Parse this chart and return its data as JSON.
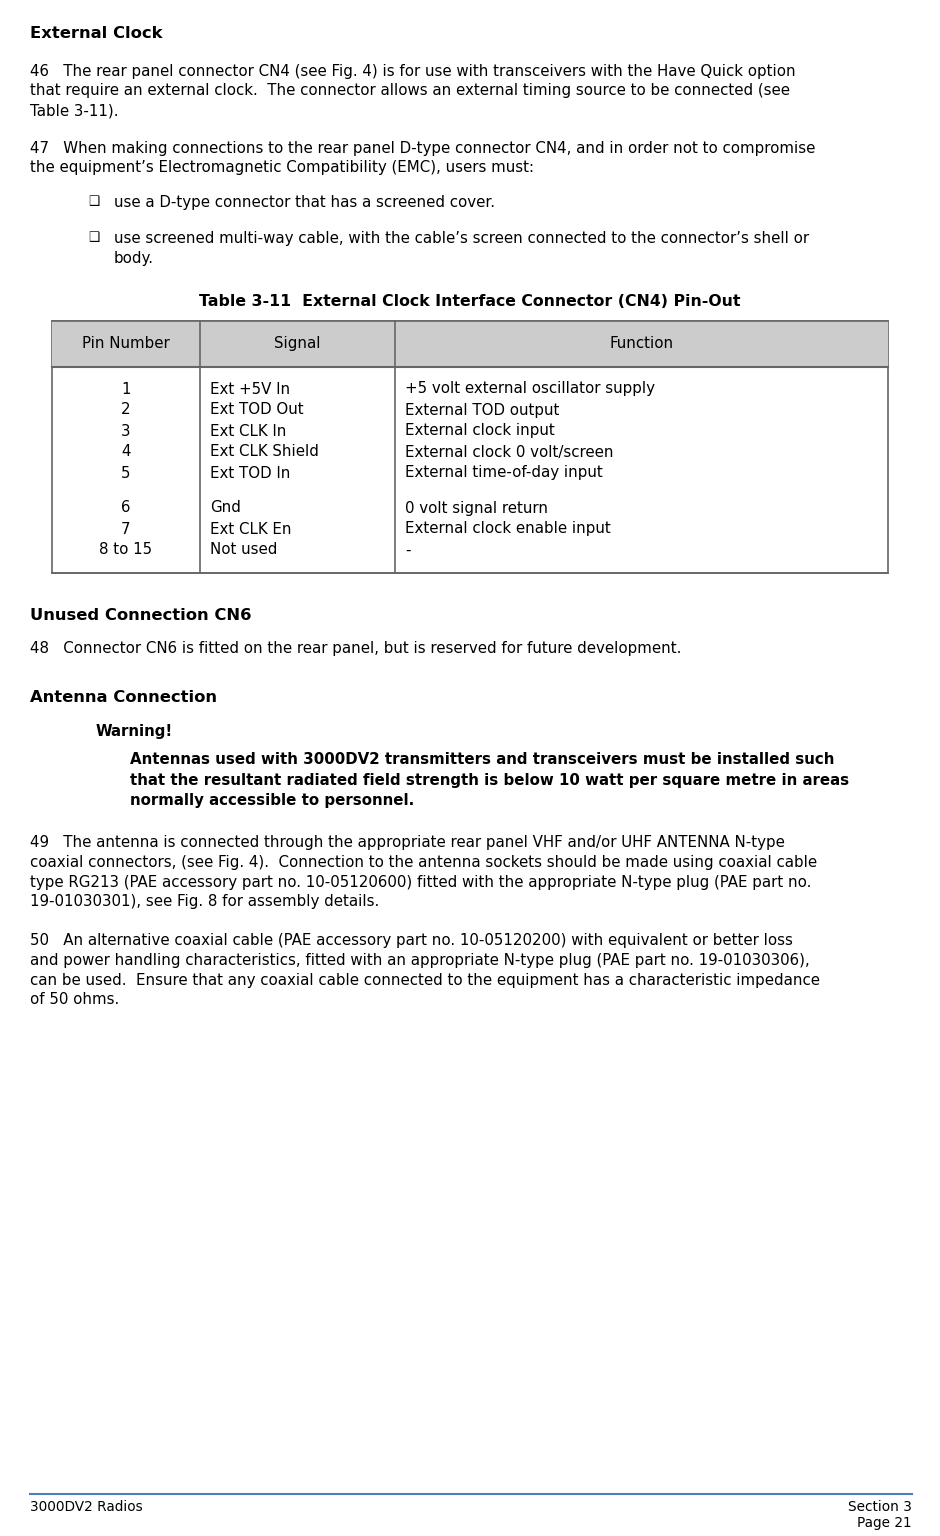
{
  "title": "External Clock",
  "para46_lines": [
    "46   The rear panel connector CN4 (see Fig. 4) is for use with transceivers with the Have Quick option",
    "that require an external clock.  The connector allows an external timing source to be connected (see",
    "Table 3-11)."
  ],
  "para47_lines": [
    "47   When making connections to the rear panel D-type connector CN4, and in order not to compromise",
    "the equipment’s Electromagnetic Compatibility (EMC), users must:"
  ],
  "bullet1": "use a D-type connector that has a screened cover.",
  "bullet2_lines": [
    "use screened multi-way cable, with the cable’s screen connected to the connector’s shell or",
    "body."
  ],
  "table_title": "Table 3-11  External Clock Interface Connector (CN4) Pin-Out",
  "table_header": [
    "Pin Number",
    "Signal",
    "Function"
  ],
  "table_rows": [
    [
      "1",
      "Ext +5V In",
      "+5 volt external oscillator supply"
    ],
    [
      "2",
      "Ext TOD Out",
      "External TOD output"
    ],
    [
      "3",
      "Ext CLK In",
      "External clock input"
    ],
    [
      "4",
      "Ext CLK Shield",
      "External clock 0 volt/screen"
    ],
    [
      "5",
      "Ext TOD In",
      "External time-of-day input"
    ],
    [
      "",
      "",
      ""
    ],
    [
      "6",
      "Gnd",
      "0 volt signal return"
    ],
    [
      "7",
      "Ext CLK En",
      "External clock enable input"
    ],
    [
      "8 to 15",
      "Not used",
      "-"
    ]
  ],
  "section2_title": "Unused Connection CN6",
  "para48_lines": [
    "48   Connector CN6 is fitted on the rear panel, but is reserved for future development."
  ],
  "section3_title": "Antenna Connection",
  "warning_label": "Warning!",
  "warning_lines": [
    "Antennas used with 3000DV2 transmitters and transceivers must be installed such",
    "that the resultant radiated field strength is below 10 watt per square metre in areas",
    "normally accessible to personnel."
  ],
  "para49_lines": [
    "49   The antenna is connected through the appropriate rear panel VHF and/or UHF ANTENNA N-type",
    "coaxial connectors, (see Fig. 4).  Connection to the antenna sockets should be made using coaxial cable",
    "type RG213 (PAE accessory part no. 10-05120600) fitted with the appropriate N-type plug (PAE part no.",
    "19-01030301), see Fig. 8 for assembly details."
  ],
  "para50_lines": [
    "50   An alternative coaxial cable (PAE accessory part no. 10-05120200) with equivalent or better loss",
    "and power handling characteristics, fitted with an appropriate N-type plug (PAE part no. 19-01030306),",
    "can be used.  Ensure that any coaxial cable connected to the equipment has a characteristic impedance",
    "of 50 ohms."
  ],
  "footer_left": "3000DV2 Radios",
  "footer_right_top": "Section 3",
  "footer_right_bot": "Page 21",
  "bg_color": "#ffffff",
  "text_color": "#000000",
  "table_header_bg": "#cccccc",
  "footer_line_color": "#4a7ebf"
}
